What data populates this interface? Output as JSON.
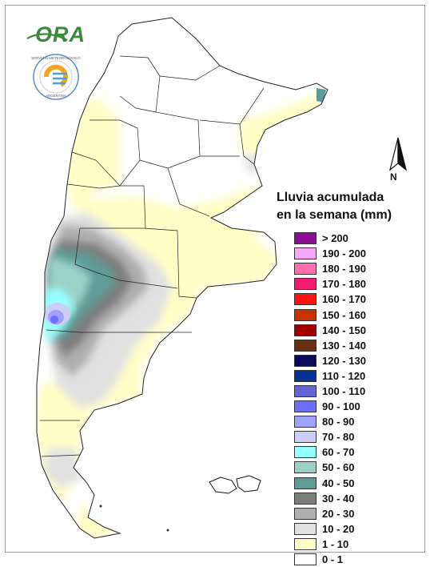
{
  "title": {
    "line1": "Lluvia acumulada",
    "line2": "en la semana (mm)"
  },
  "logo": {
    "brand_text": "ORA",
    "seal_lettering": "SERVICIO METEOROLÓGICO NACIONAL · ARGENTINA",
    "brand_color": "#3a8a3a"
  },
  "north_arrow": {
    "letter": "N",
    "icon": "north-arrow-icon"
  },
  "legend": [
    {
      "label": "> 200",
      "color": "#8b0f94"
    },
    {
      "label": "190 - 200",
      "color": "#f7a8f7"
    },
    {
      "label": "180 - 190",
      "color": "#ff6fae"
    },
    {
      "label": "170 - 180",
      "color": "#f51a6e"
    },
    {
      "label": "160 - 170",
      "color": "#ff1212"
    },
    {
      "label": "150 - 160",
      "color": "#c93200"
    },
    {
      "label": "140 - 150",
      "color": "#a00000"
    },
    {
      "label": "130 - 140",
      "color": "#6a2e10"
    },
    {
      "label": "120 - 130",
      "color": "#0a0a5a"
    },
    {
      "label": "110 - 120",
      "color": "#0a3296"
    },
    {
      "label": "100 - 110",
      "color": "#6464d2"
    },
    {
      "label": "90 - 100",
      "color": "#6e6eff"
    },
    {
      "label": "80 - 90",
      "color": "#a0a0ff"
    },
    {
      "label": "70 - 80",
      "color": "#cdcdf5"
    },
    {
      "label": "60 - 70",
      "color": "#96ffff"
    },
    {
      "label": "50 - 60",
      "color": "#9bd2c8"
    },
    {
      "label": "40 - 50",
      "color": "#5f9b96"
    },
    {
      "label": "30 - 40",
      "color": "#7d7d7d"
    },
    {
      "label": "20 - 30",
      "color": "#afafaf"
    },
    {
      "label": "10 - 20",
      "color": "#e1e1e1"
    },
    {
      "label": "1 - 10",
      "color": "#ffffc8"
    },
    {
      "label": "0 - 1",
      "color": "#ffffff"
    }
  ]
}
